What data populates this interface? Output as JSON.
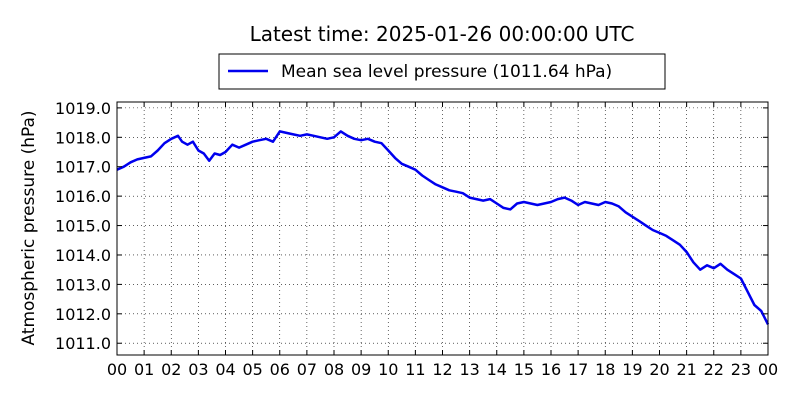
{
  "chart_data": {
    "type": "line",
    "title": "Latest time: 2025-01-26 00:00:00 UTC",
    "xlabel": "",
    "ylabel": "Atmospheric pressure (hPa)",
    "x_ticks": [
      "00",
      "01",
      "02",
      "03",
      "04",
      "05",
      "06",
      "07",
      "08",
      "09",
      "10",
      "11",
      "12",
      "13",
      "14",
      "15",
      "16",
      "17",
      "18",
      "19",
      "20",
      "21",
      "22",
      "23",
      "00"
    ],
    "y_ticks": [
      "1011.0",
      "1012.0",
      "1013.0",
      "1014.0",
      "1015.0",
      "1016.0",
      "1017.0",
      "1018.0",
      "1019.0"
    ],
    "xlim": [
      0,
      24
    ],
    "ylim": [
      1010.6,
      1019.2
    ],
    "grid": true,
    "legend_position": "top-center",
    "series": [
      {
        "name": "Mean sea level pressure (1011.64 hPa)",
        "color": "#0000ee",
        "x": [
          0,
          0.25,
          0.5,
          0.75,
          1.0,
          1.25,
          1.5,
          1.75,
          2.0,
          2.25,
          2.4,
          2.6,
          2.8,
          3.0,
          3.2,
          3.4,
          3.6,
          3.8,
          4.0,
          4.25,
          4.5,
          4.75,
          5.0,
          5.25,
          5.5,
          5.75,
          6.0,
          6.25,
          6.5,
          6.75,
          7.0,
          7.25,
          7.5,
          7.75,
          8.0,
          8.25,
          8.5,
          8.75,
          9.0,
          9.25,
          9.5,
          9.75,
          10.0,
          10.25,
          10.5,
          10.75,
          11.0,
          11.25,
          11.5,
          11.75,
          12.0,
          12.25,
          12.5,
          12.75,
          13.0,
          13.25,
          13.5,
          13.75,
          14.0,
          14.25,
          14.5,
          14.75,
          15.0,
          15.25,
          15.5,
          15.75,
          16.0,
          16.25,
          16.5,
          16.75,
          17.0,
          17.25,
          17.5,
          17.75,
          18.0,
          18.25,
          18.5,
          18.75,
          19.0,
          19.25,
          19.5,
          19.75,
          20.0,
          20.25,
          20.5,
          20.75,
          21.0,
          21.25,
          21.5,
          21.75,
          22.0,
          22.25,
          22.5,
          22.75,
          23.0,
          23.25,
          23.5,
          23.75,
          24.0
        ],
        "y": [
          1016.9,
          1017.0,
          1017.15,
          1017.25,
          1017.3,
          1017.35,
          1017.55,
          1017.8,
          1017.95,
          1018.05,
          1017.85,
          1017.75,
          1017.85,
          1017.55,
          1017.45,
          1017.2,
          1017.45,
          1017.4,
          1017.5,
          1017.75,
          1017.65,
          1017.75,
          1017.85,
          1017.9,
          1017.95,
          1017.85,
          1018.2,
          1018.15,
          1018.1,
          1018.05,
          1018.1,
          1018.05,
          1018.0,
          1017.95,
          1018.0,
          1018.2,
          1018.05,
          1017.95,
          1017.9,
          1017.95,
          1017.85,
          1017.8,
          1017.55,
          1017.3,
          1017.1,
          1017.0,
          1016.9,
          1016.7,
          1016.55,
          1016.4,
          1016.3,
          1016.2,
          1016.15,
          1016.1,
          1015.95,
          1015.9,
          1015.85,
          1015.9,
          1015.75,
          1015.6,
          1015.55,
          1015.75,
          1015.8,
          1015.75,
          1015.7,
          1015.75,
          1015.8,
          1015.9,
          1015.95,
          1015.85,
          1015.7,
          1015.8,
          1015.75,
          1015.7,
          1015.8,
          1015.75,
          1015.65,
          1015.45,
          1015.3,
          1015.15,
          1015.0,
          1014.85,
          1014.75,
          1014.65,
          1014.5,
          1014.35,
          1014.1,
          1013.75,
          1013.5,
          1013.65,
          1013.55,
          1013.7,
          1013.5,
          1013.35,
          1013.2,
          1012.75,
          1012.3,
          1012.1,
          1011.64
        ]
      }
    ]
  }
}
